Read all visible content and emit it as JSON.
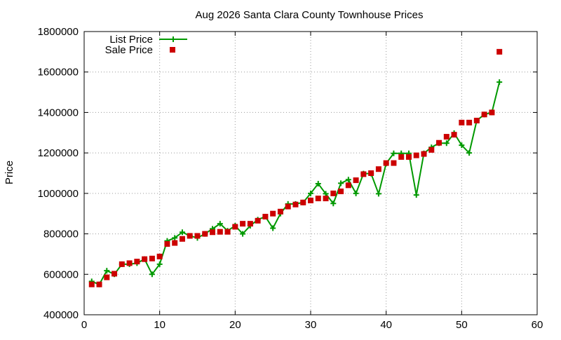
{
  "colors": {
    "list_line": "#009900",
    "sale_marker": "#cc0000",
    "axis": "#000000",
    "grid": "#9a9a9a"
  },
  "chart_data": {
    "type": "scatter",
    "title": "Aug 2026 Santa Clara County Townhouse Prices",
    "xlabel": "",
    "ylabel": "Price",
    "xlim": [
      0,
      60
    ],
    "ylim": [
      400000,
      1800000
    ],
    "x_ticks": [
      "0",
      "10",
      "20",
      "30",
      "40",
      "50",
      "60"
    ],
    "y_ticks": [
      "400000",
      "600000",
      "800000",
      "1000000",
      "1200000",
      "1400000",
      "1600000",
      "1800000"
    ],
    "grid": true,
    "legend": "top-left",
    "series": [
      {
        "name": "List Price",
        "style": "line-with-plus-markers",
        "color": "#009900",
        "x": [
          1,
          2,
          3,
          4,
          5,
          6,
          7,
          8,
          9,
          10,
          11,
          12,
          13,
          14,
          15,
          16,
          17,
          18,
          19,
          20,
          21,
          22,
          23,
          24,
          25,
          26,
          27,
          28,
          29,
          30,
          31,
          32,
          33,
          34,
          35,
          36,
          37,
          38,
          39,
          40,
          41,
          42,
          43,
          44,
          45,
          46,
          47,
          48,
          49,
          50,
          51,
          52,
          53,
          54,
          55
        ],
        "y": [
          565000,
          550000,
          618000,
          600000,
          650000,
          650000,
          655000,
          675000,
          600000,
          650000,
          765000,
          780000,
          808000,
          790000,
          780000,
          800000,
          825000,
          850000,
          815000,
          840000,
          800000,
          840000,
          870000,
          885000,
          828000,
          900000,
          948000,
          948000,
          955000,
          1000000,
          1048000,
          998000,
          950000,
          1050000,
          1068000,
          1000000,
          1098000,
          1098000,
          998000,
          1148000,
          1198000,
          1198000,
          1198000,
          992000,
          1198000,
          1228000,
          1248000,
          1248000,
          1298000,
          1238000,
          1200000,
          1360000,
          1390000,
          1400000,
          1550000
        ]
      },
      {
        "name": "Sale Price",
        "style": "square-markers",
        "color": "#cc0000",
        "x": [
          1,
          2,
          3,
          4,
          5,
          6,
          7,
          8,
          9,
          10,
          11,
          12,
          13,
          14,
          15,
          16,
          17,
          18,
          19,
          20,
          21,
          22,
          23,
          24,
          25,
          26,
          27,
          28,
          29,
          30,
          31,
          32,
          33,
          34,
          35,
          36,
          37,
          38,
          39,
          40,
          41,
          42,
          43,
          44,
          45,
          46,
          47,
          48,
          49,
          50,
          51,
          52,
          53,
          54,
          55
        ],
        "y": [
          550000,
          550000,
          585000,
          603000,
          650000,
          655000,
          663000,
          675000,
          678000,
          688000,
          750000,
          755000,
          775000,
          790000,
          790000,
          800000,
          808000,
          810000,
          810000,
          835000,
          850000,
          850000,
          865000,
          885000,
          900000,
          910000,
          935000,
          945000,
          955000,
          965000,
          975000,
          975000,
          1000000,
          1010000,
          1040000,
          1065000,
          1095000,
          1100000,
          1120000,
          1150000,
          1150000,
          1180000,
          1180000,
          1188000,
          1195000,
          1215000,
          1250000,
          1280000,
          1290000,
          1350000,
          1350000,
          1360000,
          1390000,
          1400000,
          1700000
        ]
      }
    ]
  }
}
